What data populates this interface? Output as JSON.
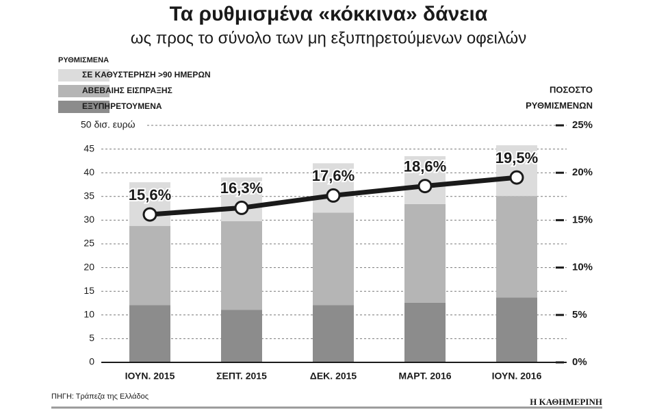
{
  "chart_data": {
    "type": "stacked-bar-line",
    "title": "Τα ρυθμισμένα «κόκκινα» δάνεια",
    "subtitle": "ως προς το σύνολο των μη εξυπηρετούμενων οφειλών",
    "legend_title": "ΡΥΘΜΙΣΜΕΝΑ",
    "categories": [
      "ΙΟΥΝ. 2015",
      "ΣΕΠΤ. 2015",
      "ΔΕΚ. 2015",
      "ΜΑΡΤ. 2016",
      "ΙΟΥΝ. 2016"
    ],
    "series": [
      {
        "name": "ΕΞΥΠΗΡΕΤΟΥΜΕΝΑ",
        "color": "#8c8c8c",
        "values": [
          12.1,
          11.1,
          12.1,
          12.6,
          13.7
        ]
      },
      {
        "name": "ΑΒΕΒΑΙΗΣ ΕΙΣΠΡΑΞΗΣ",
        "color": "#b5b5b5",
        "values": [
          16.7,
          18.7,
          19.5,
          20.8,
          21.4
        ]
      },
      {
        "name": "ΣΕ ΚΑΘΥΣΤΕΡΗΣΗ >90 ΗΜΕΡΩΝ",
        "color": "#dcdcdc",
        "values": [
          9.2,
          9.2,
          10.4,
          10.1,
          10.7
        ]
      }
    ],
    "line_series": {
      "axis": "y2",
      "color": "#1a1a1a",
      "values": [
        15.6,
        16.3,
        17.6,
        18.6,
        19.5
      ],
      "value_labels": [
        "15,6%",
        "16,3%",
        "17,6%",
        "18,6%",
        "19,5%"
      ]
    },
    "ylim": [
      0,
      50
    ],
    "yticks": [
      0,
      5,
      10,
      15,
      20,
      25,
      30,
      35,
      40,
      45,
      {
        "value": 50,
        "label": "50 δισ. ευρώ"
      }
    ],
    "y2_title": [
      "ΠΟΣΟΣΤΟ",
      "ΡΥΘΜΙΣΜΕΝΩΝ"
    ],
    "y2lim": [
      0,
      25
    ],
    "y2ticks": [
      {
        "value": 0,
        "label": "0%"
      },
      {
        "value": 5,
        "label": "5%"
      },
      {
        "value": 10,
        "label": "10%"
      },
      {
        "value": 15,
        "label": "15%"
      },
      {
        "value": 20,
        "label": "20%"
      },
      {
        "value": 25,
        "label": "25%"
      }
    ],
    "grid": true,
    "source": "ΠΗΓΗ: Τράπεζα της Ελλάδος",
    "brand": "Η ΚΑΘΗΜΕΡΙΝΗ"
  }
}
